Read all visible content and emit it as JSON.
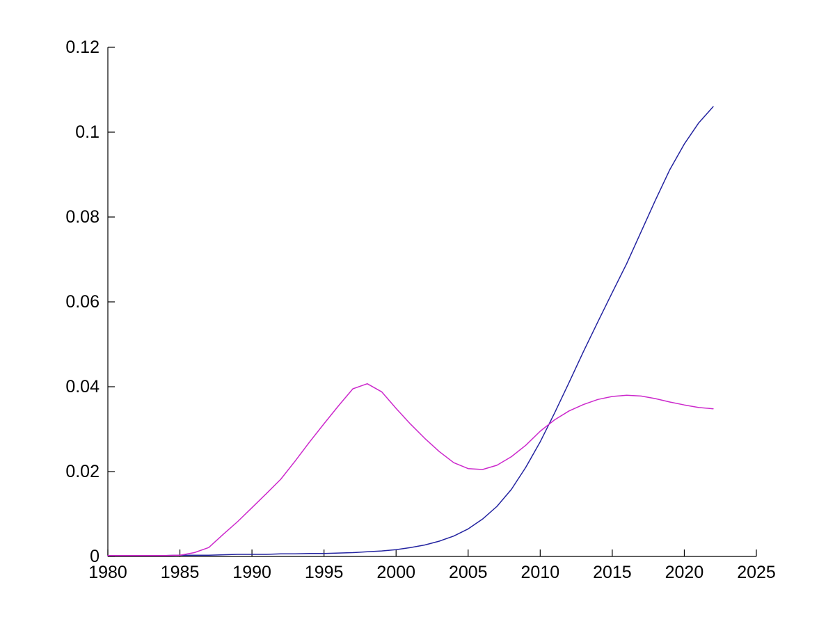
{
  "figure": {
    "background": "#ffffff",
    "axis_color": "#000000",
    "tick_direction": "in",
    "box": false
  },
  "chart_data": {
    "type": "line",
    "title": "",
    "xlabel": "",
    "ylabel": "",
    "xlim": [
      1980,
      2025
    ],
    "ylim": [
      0,
      0.12
    ],
    "grid": false,
    "legend": null,
    "x_ticks": [
      1980,
      1985,
      1990,
      1995,
      2000,
      2005,
      2010,
      2015,
      2020,
      2025
    ],
    "x_tick_labels": [
      "1980",
      "1985",
      "1990",
      "1995",
      "2000",
      "2005",
      "2010",
      "2015",
      "2020",
      "2025"
    ],
    "y_ticks": [
      0,
      0.02,
      0.04,
      0.06,
      0.08,
      0.1,
      0.12
    ],
    "y_tick_labels": [
      "0",
      "0.02",
      "0.04",
      "0.06",
      "0.08",
      "0.1",
      "0.12"
    ],
    "x": [
      1980,
      1981,
      1982,
      1983,
      1984,
      1985,
      1986,
      1987,
      1988,
      1989,
      1990,
      1991,
      1992,
      1993,
      1994,
      1995,
      1996,
      1997,
      1998,
      1999,
      2000,
      2001,
      2002,
      2003,
      2004,
      2005,
      2006,
      2007,
      2008,
      2009,
      2010,
      2011,
      2012,
      2013,
      2014,
      2015,
      2016,
      2017,
      2018,
      2019,
      2020,
      2021,
      2022
    ],
    "series": [
      {
        "name": "blue-line",
        "color": "#2323a0",
        "values": [
          0.0002,
          0.0002,
          0.0002,
          0.0002,
          0.0002,
          0.0003,
          0.0003,
          0.0003,
          0.0004,
          0.0005,
          0.0005,
          0.0005,
          0.0006,
          0.0006,
          0.0007,
          0.0007,
          0.0008,
          0.0009,
          0.0011,
          0.0013,
          0.0016,
          0.0021,
          0.0027,
          0.0036,
          0.0048,
          0.0065,
          0.0088,
          0.0118,
          0.0158,
          0.021,
          0.027,
          0.0338,
          0.041,
          0.0483,
          0.0553,
          0.0622,
          0.069,
          0.0765,
          0.084,
          0.0912,
          0.0972,
          0.1022,
          0.106
        ]
      },
      {
        "name": "magenta-line",
        "color": "#cc29cc",
        "values": [
          0.0002,
          0.0002,
          0.0002,
          0.0002,
          0.0002,
          0.0003,
          0.0009,
          0.0021,
          0.0052,
          0.0082,
          0.0115,
          0.0148,
          0.0182,
          0.0225,
          0.027,
          0.0313,
          0.0355,
          0.0395,
          0.0407,
          0.0388,
          0.0349,
          0.0312,
          0.0278,
          0.0247,
          0.0221,
          0.0207,
          0.0205,
          0.0215,
          0.0235,
          0.0262,
          0.0295,
          0.0322,
          0.0343,
          0.0358,
          0.037,
          0.0377,
          0.038,
          0.0378,
          0.0372,
          0.0364,
          0.0357,
          0.0351,
          0.0348
        ]
      }
    ]
  }
}
